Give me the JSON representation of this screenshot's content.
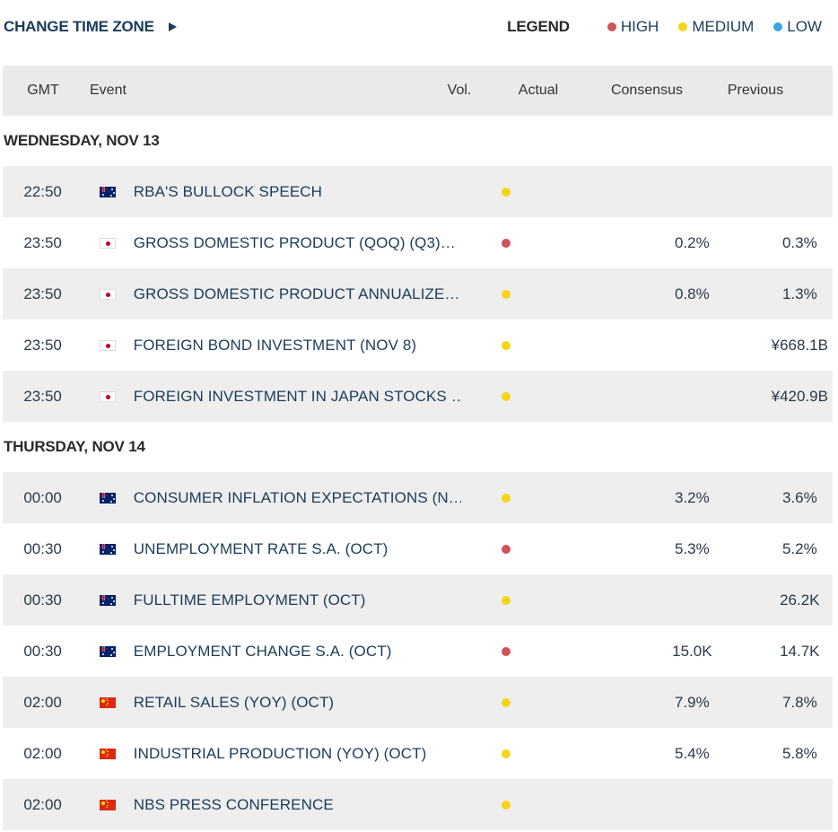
{
  "colors": {
    "high": "#d0525a",
    "medium": "#f7d417",
    "low": "#3aa8dc"
  },
  "topbar": {
    "change_tz_label": "CHANGE TIME ZONE",
    "legend_title": "LEGEND",
    "legend": [
      {
        "key": "high",
        "label": "HIGH"
      },
      {
        "key": "medium",
        "label": "MEDIUM"
      },
      {
        "key": "low",
        "label": "LOW"
      }
    ]
  },
  "table": {
    "columns": {
      "gmt": "GMT",
      "event": "Event",
      "vol": "Vol.",
      "actual": "Actual",
      "consensus": "Consensus",
      "previous": "Previous"
    },
    "days": [
      {
        "label": "WEDNESDAY, NOV 13",
        "events": [
          {
            "time": "22:50",
            "country": "AU",
            "flag_icon": "australia-flag-icon",
            "event": "RBA'S BULLOCK SPEECH",
            "vol": "medium",
            "actual": "",
            "consensus": "",
            "previous": ""
          },
          {
            "time": "23:50",
            "country": "JP",
            "flag_icon": "japan-flag-icon",
            "event": "GROSS DOMESTIC PRODUCT (QOQ) (Q3)…",
            "vol": "high",
            "actual": "",
            "consensus": "0.2%",
            "previous": "0.3%"
          },
          {
            "time": "23:50",
            "country": "JP",
            "flag_icon": "japan-flag-icon",
            "event": "GROSS DOMESTIC PRODUCT ANNUALIZE…",
            "vol": "medium",
            "actual": "",
            "consensus": "0.8%",
            "previous": "1.3%"
          },
          {
            "time": "23:50",
            "country": "JP",
            "flag_icon": "japan-flag-icon",
            "event": "FOREIGN BOND INVESTMENT (NOV 8)",
            "vol": "medium",
            "actual": "",
            "consensus": "",
            "previous": "¥668.1B"
          },
          {
            "time": "23:50",
            "country": "JP",
            "flag_icon": "japan-flag-icon",
            "event": "FOREIGN INVESTMENT IN JAPAN STOCKS …",
            "vol": "medium",
            "actual": "",
            "consensus": "",
            "previous": "¥420.9B"
          }
        ]
      },
      {
        "label": "THURSDAY, NOV 14",
        "events": [
          {
            "time": "00:00",
            "country": "AU",
            "flag_icon": "australia-flag-icon",
            "event": "CONSUMER INFLATION EXPECTATIONS (N…",
            "vol": "medium",
            "actual": "",
            "consensus": "3.2%",
            "previous": "3.6%"
          },
          {
            "time": "00:30",
            "country": "AU",
            "flag_icon": "australia-flag-icon",
            "event": "UNEMPLOYMENT RATE S.A. (OCT)",
            "vol": "high",
            "actual": "",
            "consensus": "5.3%",
            "previous": "5.2%"
          },
          {
            "time": "00:30",
            "country": "AU",
            "flag_icon": "australia-flag-icon",
            "event": "FULLTIME EMPLOYMENT (OCT)",
            "vol": "medium",
            "actual": "",
            "consensus": "",
            "previous": "26.2K"
          },
          {
            "time": "00:30",
            "country": "AU",
            "flag_icon": "australia-flag-icon",
            "event": "EMPLOYMENT CHANGE S.A. (OCT)",
            "vol": "high",
            "actual": "",
            "consensus": "15.0K",
            "previous": "14.7K"
          },
          {
            "time": "02:00",
            "country": "CN",
            "flag_icon": "china-flag-icon",
            "event": "RETAIL SALES (YOY) (OCT)",
            "vol": "medium",
            "actual": "",
            "consensus": "7.9%",
            "previous": "7.8%"
          },
          {
            "time": "02:00",
            "country": "CN",
            "flag_icon": "china-flag-icon",
            "event": "INDUSTRIAL PRODUCTION (YOY) (OCT)",
            "vol": "medium",
            "actual": "",
            "consensus": "5.4%",
            "previous": "5.8%"
          },
          {
            "time": "02:00",
            "country": "CN",
            "flag_icon": "china-flag-icon",
            "event": "NBS PRESS CONFERENCE",
            "vol": "medium",
            "actual": "",
            "consensus": "",
            "previous": ""
          }
        ]
      }
    ]
  }
}
